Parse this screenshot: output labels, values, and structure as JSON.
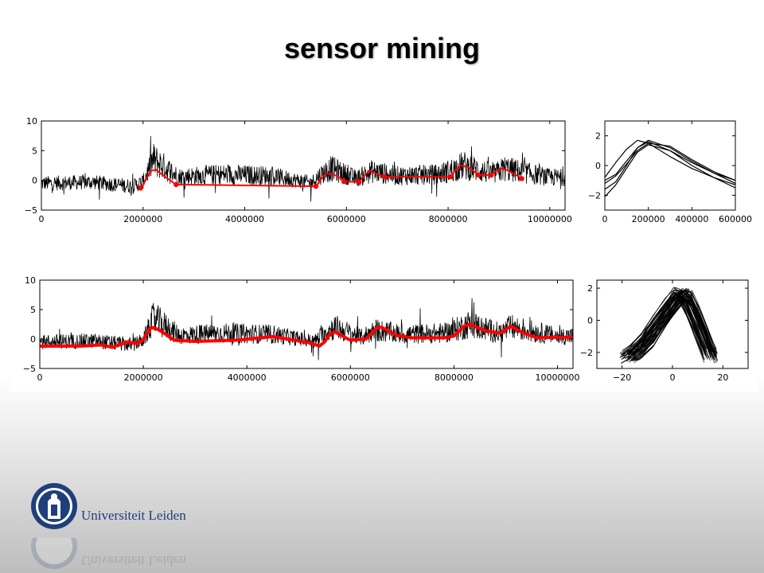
{
  "slide": {
    "title": "sensor mining",
    "logo_text": "Universiteit Leiden",
    "brand_color": "#1f3f7a"
  },
  "chart_data": [
    {
      "type": "line",
      "panel": "top-left",
      "series": [
        {
          "color": "#000000",
          "style": "noisy-signal",
          "x": [
            0,
            1000000,
            1800000,
            2000000,
            2200000,
            2700000,
            3500000,
            4500000,
            5300000,
            5500000,
            5700000,
            6200000,
            6500000,
            7000000,
            7800000,
            8000000,
            8300000,
            8900000,
            9100000,
            10000000
          ],
          "y": [
            -0.5,
            -0.3,
            -1.0,
            -0.2,
            3.5,
            0.6,
            1.0,
            0.8,
            -0.4,
            1.0,
            2.0,
            0.3,
            1.5,
            0.8,
            1.0,
            1.5,
            2.5,
            1.0,
            2.0,
            0.5
          ]
        },
        {
          "color": "#ff0000",
          "style": "smoothed-segments",
          "x": [
            1950000,
            2050000,
            2150000,
            2250000,
            2450000,
            2650000,
            5400000,
            5500000,
            5600000,
            5800000,
            6000000,
            6250000,
            6300000,
            6450000,
            6550000,
            6750000,
            8050000,
            8150000,
            8250000,
            8400000,
            8600000,
            8850000,
            8950000,
            9050000,
            9200000,
            9450000
          ],
          "y": [
            -1.3,
            0.0,
            1.6,
            1.8,
            0.5,
            -0.7,
            -1.0,
            0.2,
            1.2,
            0.8,
            -0.2,
            -0.3,
            0.3,
            1.6,
            1.3,
            0.6,
            0.6,
            1.8,
            2.5,
            2.2,
            0.9,
            0.9,
            1.6,
            2.0,
            1.6,
            0.3
          ]
        }
      ],
      "markers": {
        "color": "#ff0000",
        "x": [
          1950000,
          2650000,
          5400000,
          5950000,
          6250000,
          6750000,
          8050000,
          8600000,
          8850000,
          9450000
        ],
        "y": [
          -1.3,
          -0.7,
          -1.0,
          -0.2,
          -0.3,
          0.6,
          0.6,
          0.9,
          0.9,
          0.3
        ]
      },
      "xlim": [
        0,
        10300000
      ],
      "ylim": [
        -5,
        10
      ],
      "xticks": [
        0,
        2000000,
        4000000,
        6000000,
        8000000,
        10000000
      ],
      "xtick_labels": [
        "0",
        "2000000",
        "4000000",
        "6000000",
        "8000000",
        "10000000"
      ],
      "yticks": [
        -5,
        0,
        5,
        10
      ],
      "ytick_labels": [
        "−5",
        "0",
        "5",
        "10"
      ],
      "grid": false
    },
    {
      "type": "line",
      "panel": "top-right",
      "series": [
        {
          "color": "#000000",
          "x": [
            0,
            50000,
            100000,
            150000,
            200000,
            300000,
            400000,
            500000,
            600000
          ],
          "y": [
            -1.0,
            -0.6,
            0.3,
            1.2,
            1.6,
            1.0,
            0.2,
            -0.5,
            -1.0
          ]
        },
        {
          "color": "#000000",
          "x": [
            0,
            50000,
            100000,
            150000,
            200000,
            300000,
            400000,
            500000,
            600000
          ],
          "y": [
            -1.6,
            -1.1,
            0.0,
            1.2,
            1.7,
            1.2,
            0.3,
            -0.5,
            -1.2
          ]
        },
        {
          "color": "#000000",
          "x": [
            0,
            50000,
            100000,
            150000,
            200000,
            300000,
            400000,
            500000,
            600000
          ],
          "y": [
            -0.8,
            0.2,
            1.1,
            1.7,
            1.5,
            0.6,
            -0.2,
            -0.8,
            -1.3
          ]
        },
        {
          "color": "#000000",
          "x": [
            0,
            50000,
            100000,
            150000,
            200000,
            300000,
            400000,
            500000,
            600000
          ],
          "y": [
            -1.2,
            -0.7,
            0.1,
            1.0,
            1.5,
            1.3,
            0.4,
            -0.4,
            -1.0
          ]
        },
        {
          "color": "#000000",
          "x": [
            0,
            50000,
            100000,
            150000,
            200000,
            300000,
            400000,
            500000,
            600000
          ],
          "y": [
            -2.1,
            -1.3,
            -0.2,
            0.9,
            1.4,
            1.0,
            0.0,
            -0.8,
            -1.5
          ]
        }
      ],
      "xlim": [
        0,
        600000
      ],
      "ylim": [
        -3,
        3
      ],
      "xticks": [
        0,
        200000,
        400000,
        600000
      ],
      "xtick_labels": [
        "0",
        "200000",
        "400000",
        "600000"
      ],
      "yticks": [
        -2,
        0,
        2
      ],
      "ytick_labels": [
        "−2",
        "0",
        "2"
      ],
      "grid": false
    },
    {
      "type": "line",
      "panel": "bottom-left",
      "series": [
        {
          "color": "#000000",
          "style": "noisy-signal",
          "x": [
            0,
            1000000,
            1800000,
            2000000,
            2200000,
            2700000,
            3500000,
            4500000,
            5300000,
            5500000,
            5700000,
            6200000,
            6500000,
            7000000,
            7800000,
            8000000,
            8300000,
            8900000,
            9100000,
            10000000
          ],
          "y": [
            -0.5,
            -0.3,
            -1.0,
            -0.2,
            3.5,
            0.6,
            1.0,
            0.8,
            -0.4,
            1.0,
            2.0,
            0.3,
            1.5,
            0.8,
            1.0,
            1.5,
            2.5,
            1.0,
            2.0,
            0.5
          ]
        },
        {
          "color": "#ff0000",
          "style": "thick-smoothed",
          "x": [
            0,
            800000,
            1200000,
            1400000,
            1700000,
            1900000,
            2000000,
            2150000,
            2300000,
            2600000,
            3000000,
            3800000,
            4500000,
            5200000,
            5400000,
            5500000,
            5600000,
            5700000,
            6000000,
            6300000,
            6500000,
            6600000,
            6900000,
            7200000,
            7800000,
            8000000,
            8200000,
            8300000,
            8600000,
            8900000,
            9100000,
            9300000,
            9600000,
            10000000,
            10300000
          ],
          "y": [
            -1.2,
            -1.2,
            -1.0,
            -1.4,
            -0.5,
            -0.8,
            0.0,
            2.0,
            1.6,
            -0.2,
            -0.4,
            -0.2,
            0.4,
            -0.6,
            -1.2,
            -0.5,
            0.8,
            1.2,
            -0.2,
            0.0,
            1.8,
            2.0,
            0.6,
            0.2,
            0.2,
            0.5,
            2.2,
            2.5,
            1.4,
            1.0,
            2.2,
            1.2,
            0.2,
            0.3,
            0.3
          ]
        }
      ],
      "xlim": [
        0,
        10300000
      ],
      "ylim": [
        -5,
        10
      ],
      "xticks": [
        0,
        2000000,
        4000000,
        6000000,
        8000000,
        10000000
      ],
      "xtick_labels": [
        "0",
        "2000000",
        "4000000",
        "6000000",
        "8000000",
        "10000000"
      ],
      "yticks": [
        -5,
        0,
        5,
        10
      ],
      "ytick_labels": [
        "−5",
        "0",
        "5",
        "10"
      ],
      "grid": false
    },
    {
      "type": "line",
      "panel": "bottom-right",
      "series": [
        {
          "color": "#000000",
          "style": "overlaid-bundle",
          "curves": 60,
          "x": [
            -18,
            -15,
            -10,
            -5,
            0,
            3,
            5,
            8,
            12,
            15
          ],
          "y": [
            -2.3,
            -2.0,
            -1.2,
            -0.1,
            1.0,
            1.6,
            1.5,
            0.5,
            -1.0,
            -2.2
          ]
        }
      ],
      "xlim": [
        -30,
        30
      ],
      "ylim": [
        -3,
        2.5
      ],
      "xticks": [
        -20,
        0,
        20
      ],
      "xtick_labels": [
        "−20",
        "0",
        "20"
      ],
      "yticks": [
        -2,
        0,
        2
      ],
      "ytick_labels": [
        "−2",
        "0",
        "2"
      ],
      "grid": false
    }
  ]
}
